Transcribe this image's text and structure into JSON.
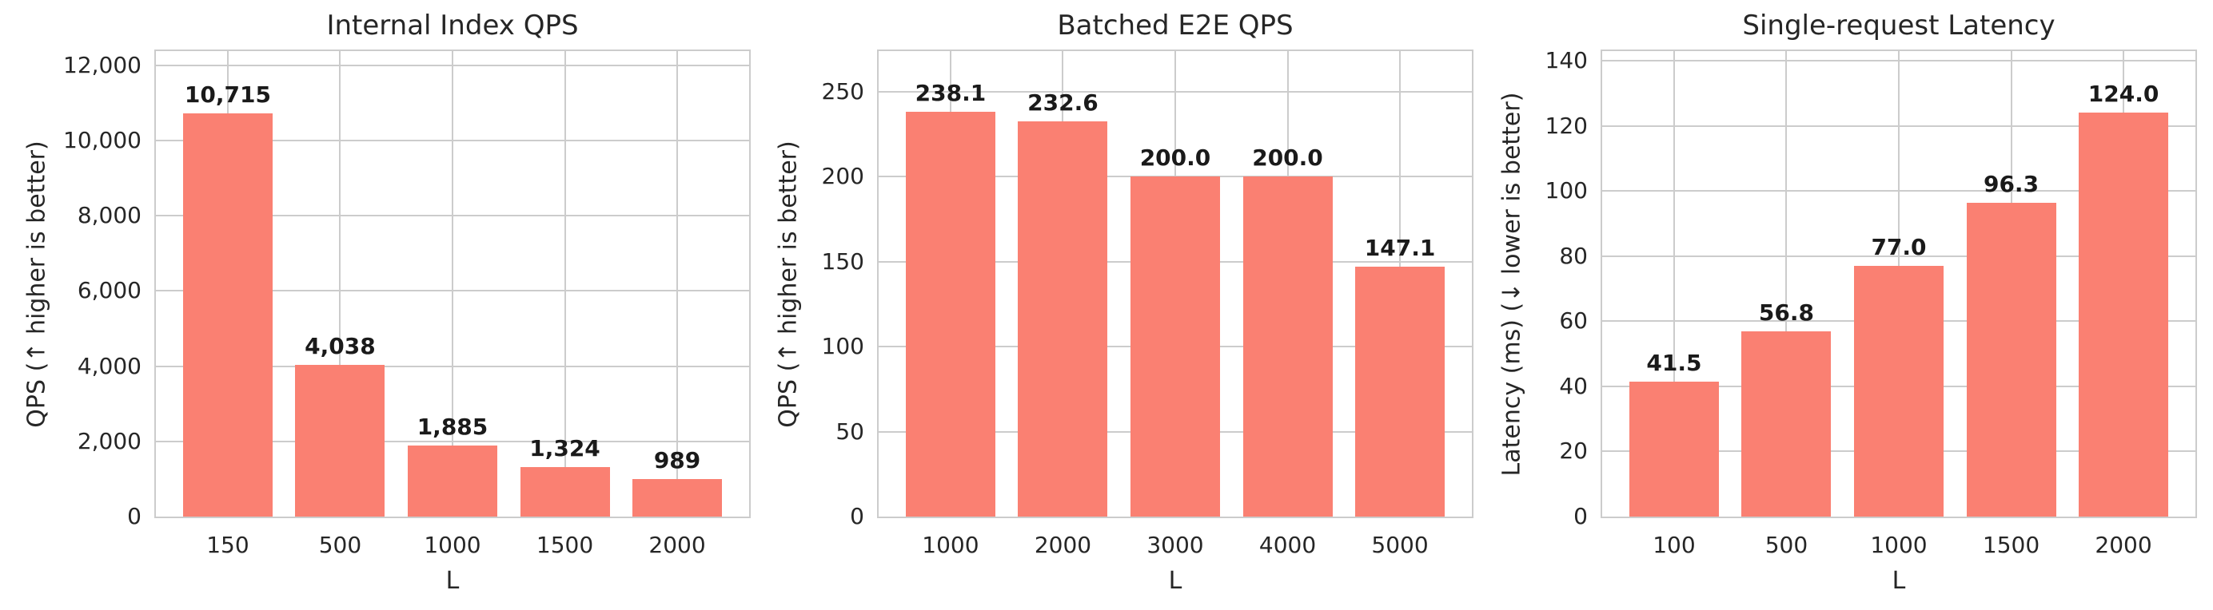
{
  "style": {
    "bar_color": "#fa8072",
    "grid_color": "#cccccc",
    "text_color": "#262626",
    "value_label_color": "#1a1a1a",
    "background": "#ffffff"
  },
  "chart_data": [
    {
      "type": "bar",
      "title": "Internal Index QPS",
      "xlabel": "L",
      "ylabel": "QPS (↑ higher is better)",
      "categories": [
        "150",
        "500",
        "1000",
        "1500",
        "2000"
      ],
      "values": [
        10715,
        4038,
        1885,
        1324,
        989
      ],
      "value_labels": [
        "10,715",
        "4,038",
        "1,885",
        "1,324",
        "989"
      ],
      "yticks": [
        0,
        2000,
        4000,
        6000,
        8000,
        10000,
        12000
      ],
      "ytick_labels": [
        "0",
        "2,000",
        "4,000",
        "6,000",
        "8,000",
        "10,000",
        "12,000"
      ],
      "ylim": [
        0,
        12380
      ],
      "grid": true,
      "legend": null
    },
    {
      "type": "bar",
      "title": "Batched E2E QPS",
      "xlabel": "L",
      "ylabel": "QPS (↑ higher is better)",
      "categories": [
        "1000",
        "2000",
        "3000",
        "4000",
        "5000"
      ],
      "values": [
        238.1,
        232.6,
        200.0,
        200.0,
        147.1
      ],
      "value_labels": [
        "238.1",
        "232.6",
        "200.0",
        "200.0",
        "147.1"
      ],
      "yticks": [
        0,
        50,
        100,
        150,
        200,
        250
      ],
      "ytick_labels": [
        "0",
        "50",
        "100",
        "150",
        "200",
        "250"
      ],
      "ylim": [
        0,
        274
      ],
      "grid": true,
      "legend": null
    },
    {
      "type": "bar",
      "title": "Single-request Latency",
      "xlabel": "L",
      "ylabel": "Latency (ms) (↓ lower is better)",
      "categories": [
        "100",
        "500",
        "1000",
        "1500",
        "2000"
      ],
      "values": [
        41.5,
        56.8,
        77.0,
        96.3,
        124.0
      ],
      "value_labels": [
        "41.5",
        "56.8",
        "77.0",
        "96.3",
        "124.0"
      ],
      "yticks": [
        0,
        20,
        40,
        60,
        80,
        100,
        120,
        140
      ],
      "ytick_labels": [
        "0",
        "20",
        "40",
        "60",
        "80",
        "100",
        "120",
        "140"
      ],
      "ylim": [
        0,
        143
      ],
      "grid": true,
      "legend": null
    }
  ]
}
